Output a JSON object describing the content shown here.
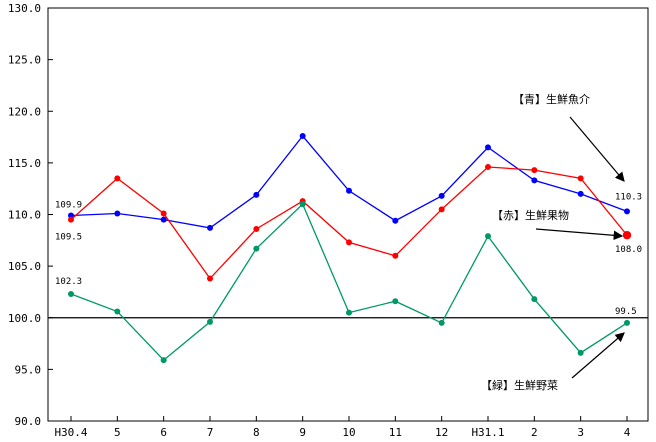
{
  "chart_data": {
    "type": "line",
    "categories": [
      "H30.4",
      "5",
      "6",
      "7",
      "8",
      "9",
      "10",
      "11",
      "12",
      "H31.1",
      "2",
      "3",
      "4"
    ],
    "ylim": [
      90,
      130
    ],
    "yticks": [
      "90.0",
      "95.0",
      "100.0",
      "105.0",
      "110.0",
      "115.0",
      "120.0",
      "125.0",
      "130.0"
    ],
    "reference_line": 100,
    "grid": false,
    "series": [
      {
        "name": "【青】生鮮魚介",
        "color": "#0000ff",
        "values": [
          109.9,
          110.1,
          109.5,
          108.7,
          111.9,
          117.6,
          112.3,
          109.4,
          111.8,
          116.5,
          113.3,
          112.0,
          110.3
        ]
      },
      {
        "name": "【赤】生鮮果物",
        "color": "#ff0000",
        "values": [
          109.5,
          113.5,
          110.1,
          103.8,
          108.6,
          111.3,
          107.3,
          106.0,
          110.5,
          114.6,
          114.3,
          113.5,
          108.0
        ]
      },
      {
        "name": "【緑】生鮮野菜",
        "color": "#009966",
        "values": [
          102.3,
          100.6,
          95.9,
          99.6,
          106.7,
          111.0,
          100.5,
          101.6,
          99.5,
          107.9,
          101.8,
          96.6,
          99.5
        ]
      }
    ],
    "data_labels": [
      {
        "series": 0,
        "index": 0,
        "text": "109.9"
      },
      {
        "series": 1,
        "index": 0,
        "text": "109.5"
      },
      {
        "series": 2,
        "index": 0,
        "text": "102.3"
      },
      {
        "series": 0,
        "index": 12,
        "text": "110.3"
      },
      {
        "series": 1,
        "index": 12,
        "text": "108.0"
      },
      {
        "series": 2,
        "index": 12,
        "text": "99.5"
      }
    ],
    "annotations": [
      "【青】生鮮魚介",
      "【赤】生鮮果物",
      "【緑】生鮮野菜"
    ]
  }
}
